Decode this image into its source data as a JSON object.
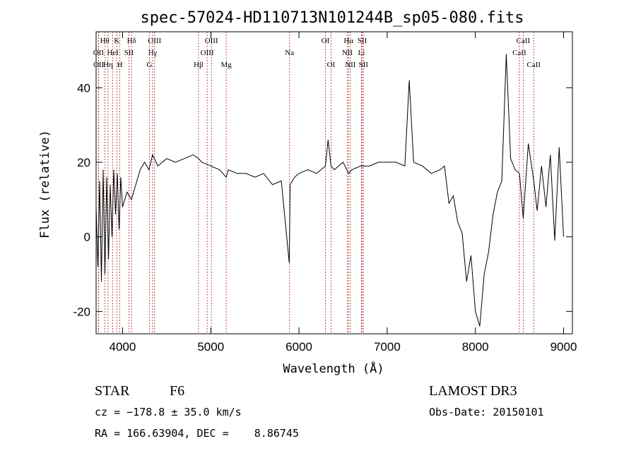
{
  "chart_data": {
    "type": "line",
    "title": "spec-57024-HD110713N101244B_sp05-080.fits",
    "xlabel": "Wavelength (Å)",
    "ylabel": "Flux (relative)",
    "xlim": [
      3700,
      9100
    ],
    "ylim": [
      -26,
      55
    ],
    "xticks": [
      "4000",
      "5000",
      "6000",
      "7000",
      "8000",
      "9000"
    ],
    "xtick_values": [
      4000,
      5000,
      6000,
      7000,
      8000,
      9000
    ],
    "yticks": [
      "-20",
      "0",
      "20",
      "40"
    ],
    "ytick_values": [
      -20,
      0,
      20,
      40
    ],
    "series": [
      {
        "name": "flux",
        "x": [
          3700,
          3720,
          3740,
          3760,
          3780,
          3800,
          3820,
          3840,
          3860,
          3880,
          3900,
          3920,
          3940,
          3960,
          3980,
          4000,
          4050,
          4100,
          4150,
          4200,
          4250,
          4300,
          4340,
          4400,
          4500,
          4600,
          4700,
          4800,
          4861,
          4900,
          5000,
          5100,
          5175,
          5200,
          5300,
          5400,
          5500,
          5600,
          5700,
          5800,
          5890,
          5900,
          5950,
          6000,
          6100,
          6200,
          6300,
          6330,
          6363,
          6400,
          6500,
          6563,
          6600,
          6700,
          6800,
          6900,
          7000,
          7100,
          7200,
          7250,
          7300,
          7400,
          7500,
          7600,
          7650,
          7700,
          7750,
          7800,
          7850,
          7900,
          7950,
          8000,
          8050,
          8100,
          8150,
          8200,
          8250,
          8300,
          8350,
          8400,
          8450,
          8500,
          8542,
          8600,
          8662,
          8700,
          8750,
          8800,
          8850,
          8900,
          8950,
          9000
        ],
        "values": [
          8,
          -8,
          15,
          -12,
          18,
          -10,
          16,
          -6,
          14,
          0,
          18,
          6,
          17,
          2,
          16,
          8,
          12,
          10,
          14,
          18,
          20,
          18,
          22,
          19,
          21,
          20,
          21,
          22,
          21,
          20,
          19,
          18,
          16,
          18,
          17,
          17,
          16,
          17,
          14,
          15,
          -7,
          14,
          16,
          17,
          18,
          17,
          19,
          26,
          19,
          18,
          20,
          17,
          18,
          19,
          19,
          20,
          20,
          20,
          19,
          42,
          20,
          19,
          17,
          18,
          19,
          9,
          11,
          4,
          1,
          -12,
          -5,
          -20,
          -24,
          -10,
          -4,
          6,
          12,
          15,
          49,
          21,
          18,
          17,
          5,
          25,
          15,
          7,
          19,
          8,
          22,
          -1,
          24,
          0
        ]
      }
    ],
    "line_markers": [
      {
        "label": "Hθ",
        "w": 3798,
        "row": 0
      },
      {
        "label": "K",
        "w": 3934,
        "row": 0
      },
      {
        "label": "Hδ",
        "w": 4102,
        "row": 0
      },
      {
        "label": "OIII",
        "w": 4363,
        "row": 0
      },
      {
        "label": "OIII",
        "w": 5007,
        "row": 0
      },
      {
        "label": "OI",
        "w": 6300,
        "row": 0
      },
      {
        "label": "Hα",
        "w": 6563,
        "row": 0
      },
      {
        "label": "SII",
        "w": 6717,
        "row": 0
      },
      {
        "label": "CaII",
        "w": 8542,
        "row": 0
      },
      {
        "label": "OII",
        "w": 3727,
        "row": 1
      },
      {
        "label": "HeI",
        "w": 3889,
        "row": 1
      },
      {
        "label": "SII",
        "w": 4072,
        "row": 1
      },
      {
        "label": "Hγ",
        "w": 4341,
        "row": 1
      },
      {
        "label": "OIII",
        "w": 4959,
        "row": 1
      },
      {
        "label": "Na",
        "w": 5893,
        "row": 1
      },
      {
        "label": "NII",
        "w": 6548,
        "row": 1
      },
      {
        "label": "Li",
        "w": 6708,
        "row": 1
      },
      {
        "label": "CaII",
        "w": 8498,
        "row": 1
      },
      {
        "label": "OII",
        "w": 3729,
        "row": 2
      },
      {
        "label": "Hη",
        "w": 3835,
        "row": 2
      },
      {
        "label": "H",
        "w": 3969,
        "row": 2
      },
      {
        "label": "G",
        "w": 4304,
        "row": 2
      },
      {
        "label": "Hβ",
        "w": 4861,
        "row": 2
      },
      {
        "label": "Mg",
        "w": 5175,
        "row": 2
      },
      {
        "label": "OI",
        "w": 6363,
        "row": 2
      },
      {
        "label": "NII",
        "w": 6583,
        "row": 2
      },
      {
        "label": "SII",
        "w": 6731,
        "row": 2
      },
      {
        "label": "CaII",
        "w": 8662,
        "row": 2
      }
    ]
  },
  "info": {
    "object_class": "STAR",
    "subclass": "F6",
    "survey": "LAMOST DR3",
    "cz": "cz = −178.8 ± 35.0 km/s",
    "obs_date": "Obs-Date: 20150101",
    "coords": "RA = 166.63904, DEC =    8.86745"
  },
  "colors": {
    "axes": "#000000",
    "spectrum": "#000000",
    "marker_line": "#b22222"
  }
}
